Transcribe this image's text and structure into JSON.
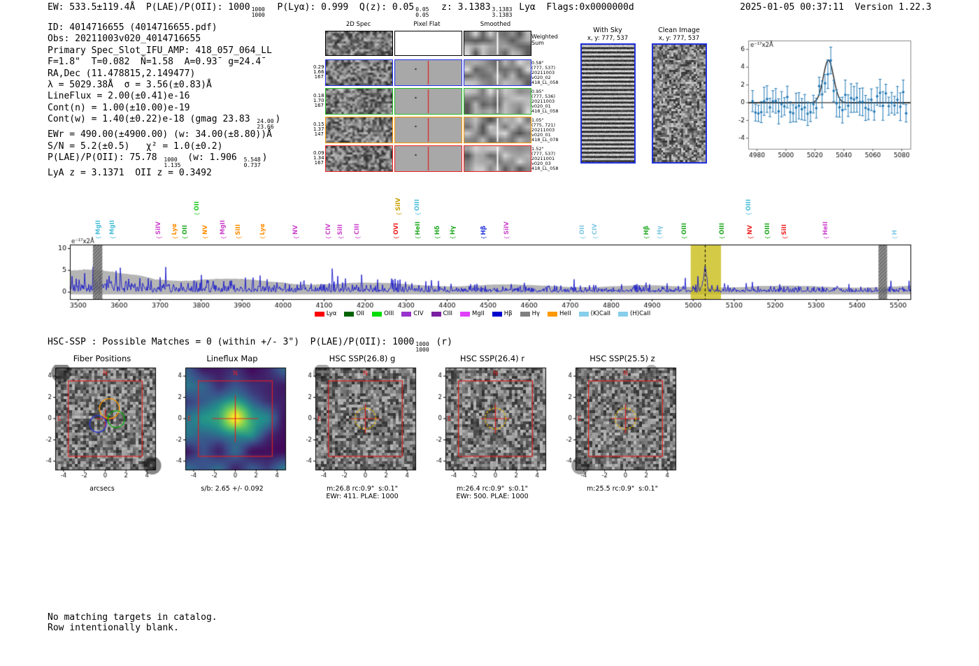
{
  "header": {
    "summary_segments": [
      {
        "t": "EW: 533.5±119.4Å  P(LAE)/P(OII): 1000"
      },
      {
        "frac": [
          "1000",
          "1000"
        ]
      },
      {
        "t": "  P(Lyα): 0.999  Q(z): 0.05"
      },
      {
        "frac": [
          "0.05",
          "0.05"
        ]
      },
      {
        "t": "  z: 3.1383"
      },
      {
        "frac": [
          "3.1383",
          "3.1383"
        ]
      },
      {
        "t": " Lyα  Flags:0x0000000d"
      }
    ],
    "timestamp_version": "2025-01-05 00:37:11  Version 1.22.3"
  },
  "info": {
    "lines": [
      [
        {
          "t": "ID: 4014716655 (4014716655.pdf)"
        }
      ],
      [
        {
          "t": "Obs: 20211003v020_4014716655"
        }
      ],
      [
        {
          "t": "Primary Spec_Slot_IFU_AMP: 418_057_064_LL"
        }
      ],
      [
        {
          "t": "F=1.8\"  T=0.082  N̄=1.58  A=0.93̄  g=24.4̄"
        }
      ],
      [
        {
          "t": "RA,Dec (11.478815,2.149477)"
        }
      ],
      [
        {
          "t": "λ = 5029.38Å  σ = 3.56(±0.83)Å"
        }
      ],
      [
        {
          "t": "LineFlux = 2.00(±0.41)e-16"
        }
      ],
      [
        {
          "t": "Cont(n) = 1.00(±10.00)e-19"
        }
      ],
      [
        {
          "t": "Cont(w) = 1.40(±0.22)e-18 (gmag 23.83 "
        },
        {
          "frac": [
            "24.00",
            "23.66"
          ]
        },
        {
          "t": ")"
        }
      ],
      [
        {
          "t": "EWr = 490.00(±4900.00) (w: 34.00(±8.80))Å"
        }
      ],
      [
        {
          "t": "S/N = 5.2(±0.5)   χ² = 1.0(±0.2)"
        }
      ],
      [
        {
          "t": "P(LAE)/P(OII): 75.78 "
        },
        {
          "frac": [
            "1000",
            "1.135"
          ]
        },
        {
          "t": " (w: 1.906 "
        },
        {
          "frac": [
            "5.548",
            "0.737"
          ]
        },
        {
          "t": ")"
        }
      ],
      [
        {
          "t": "LyA z = 3.1371  OII z = 0.3492"
        }
      ]
    ]
  },
  "spec2d": {
    "col_titles": [
      "2D Spec",
      "Pixel Flat",
      "Smoothed"
    ],
    "weighted_label": [
      "Weighted",
      "Sum"
    ],
    "rows": [
      {
        "border": "#2233ee",
        "left": [
          "0.29",
          "1.66",
          "167"
        ],
        "right": [
          "0.58\"",
          "(777, 537)",
          "20211003",
          "v020_02",
          "418_LL_058"
        ]
      },
      {
        "border": "#22bb22",
        "left": [
          "0.18",
          "1.70",
          "167"
        ],
        "right": [
          "0.95\"",
          "(777, 536)",
          "20211003",
          "v020_01",
          "418_LL_058"
        ]
      },
      {
        "border": "#ff9900",
        "left": [
          "0.15",
          "1.37",
          "147"
        ],
        "right": [
          "1.05\"",
          "(775, 721)",
          "20211003",
          "v020_01",
          "418_LL_078"
        ]
      },
      {
        "border": "#ee2222",
        "left": [
          "0.09",
          "1.34",
          "167"
        ],
        "right": [
          "1.52\"",
          "(777, 537)",
          "20211001",
          "v020_03",
          "418_LL_058"
        ]
      }
    ]
  },
  "sky_panels": [
    {
      "title": "With Sky",
      "coords": "x, y: 777, 537",
      "pattern": "stripes",
      "seed": 41
    },
    {
      "title": "Clean Image",
      "coords": "x, y: 777, 537",
      "pattern": "noise",
      "seed": 42
    }
  ],
  "hsc_line_segments": [
    {
      "t": "HSC-SSP : Possible Matches = 0 (within +/- 3\")  P(LAE)/P(OII): 1000"
    },
    {
      "frac": [
        "1000",
        "1000"
      ]
    },
    {
      "t": " (r)"
    }
  ],
  "footer": {
    "line1": "No matching targets in catalog.",
    "line2": "Row intentionally blank."
  },
  "chart_data": [
    {
      "id": "line_fit",
      "type": "scatter",
      "corner_label": "e⁻¹⁷x2Å",
      "x_range": [
        4974,
        5086
      ],
      "x_ticks": [
        4980,
        5000,
        5020,
        5040,
        5060,
        5080
      ],
      "y_range": [
        -5.2,
        7
      ],
      "y_ticks": [
        -4,
        -2,
        0,
        2,
        4,
        6
      ],
      "gaussian": {
        "center": 5029.38,
        "sigma": 3.56,
        "amplitude": 4.8
      },
      "point_spacing": 2,
      "noise_amp": 1.3,
      "error_bar": 1.3,
      "seed": 13,
      "point_color": "#1f77b4",
      "fit_color": "#222222"
    },
    {
      "id": "full_spectrum",
      "type": "line",
      "corner_label": "e⁻¹⁷x2Å",
      "x_range": [
        3480,
        5530
      ],
      "x_ticks": [
        3500,
        3600,
        3700,
        3800,
        3900,
        4000,
        4100,
        4200,
        4300,
        4400,
        4500,
        4600,
        4700,
        4800,
        4900,
        5000,
        5100,
        5200,
        5300,
        5400,
        5500
      ],
      "y_range": [
        -1.6,
        10.9
      ],
      "y_ticks": [
        0,
        5,
        10
      ],
      "line_color": "#1414cc",
      "envelope_color": "#b5b5b5",
      "highlight_band": {
        "x0": 4994,
        "x1": 5068,
        "color": "#c9bd16",
        "alpha": 0.8
      },
      "dashed_line_x": 5029.38,
      "gray_bands": [
        [
          3536,
          3559
        ],
        [
          5452,
          5473
        ]
      ],
      "peak": {
        "center": 5029.38,
        "sigma": 3.6,
        "amplitude": 5.2
      },
      "seed": 21,
      "emission_lines": [
        {
          "label": "MgII",
          "color": "#4dbfd9",
          "wl": 3551,
          "row": 1
        },
        {
          "label": "MgII",
          "color": "#4dbfd9",
          "wl": 3586,
          "row": 1
        },
        {
          "label": "SiIV",
          "color": "#cc44cc",
          "wl": 3699,
          "row": 1
        },
        {
          "label": "Lyα",
          "color": "#ff8c00",
          "wl": 3738,
          "row": 1
        },
        {
          "label": "OII",
          "color": "#22aa22",
          "wl": 3763,
          "row": 1
        },
        {
          "label": "OII",
          "color": "#22cc22",
          "wl": 3792,
          "row": 0
        },
        {
          "label": "NV",
          "color": "#ff8c00",
          "wl": 3812,
          "row": 1
        },
        {
          "label": "MgII",
          "color": "#cc44cc",
          "wl": 3856,
          "row": 1
        },
        {
          "label": "SiII",
          "color": "#ff8c00",
          "wl": 3893,
          "row": 1
        },
        {
          "label": "Lyα",
          "color": "#ff8c00",
          "wl": 3952,
          "row": 1
        },
        {
          "label": "NV",
          "color": "#cc44cc",
          "wl": 4033,
          "row": 1
        },
        {
          "label": "CIV",
          "color": "#cc44cc",
          "wl": 4112,
          "row": 1
        },
        {
          "label": "SiII",
          "color": "#cc44cc",
          "wl": 4142,
          "row": 1
        },
        {
          "label": "CIII",
          "color": "#cc44cc",
          "wl": 4183,
          "row": 1
        },
        {
          "label": "SiIV",
          "color": "#c8a000",
          "wl": 4284,
          "row": 0
        },
        {
          "label": "OVI",
          "color": "#ee2222",
          "wl": 4278,
          "row": 1
        },
        {
          "label": "OIII",
          "color": "#4dbfd9",
          "wl": 4330,
          "row": 0
        },
        {
          "label": "HeII",
          "color": "#22aa22",
          "wl": 4331,
          "row": 1
        },
        {
          "label": "Hδ",
          "color": "#22aa22",
          "wl": 4378,
          "row": 1
        },
        {
          "label": "Hγ",
          "color": "#22aa22",
          "wl": 4416,
          "row": 1
        },
        {
          "label": "Hβ",
          "color": "#2233dd",
          "wl": 4491,
          "row": 1
        },
        {
          "label": "SiIV",
          "color": "#cc44cc",
          "wl": 4547,
          "row": 1
        },
        {
          "label": "OII",
          "color": "#7ec8e3",
          "wl": 4732,
          "row": 1
        },
        {
          "label": "CIV",
          "color": "#7ec8e3",
          "wl": 4763,
          "row": 1
        },
        {
          "label": "Hβ",
          "color": "#22aa22",
          "wl": 4888,
          "row": 1
        },
        {
          "label": "Hγ",
          "color": "#7ec8e3",
          "wl": 4921,
          "row": 1
        },
        {
          "label": "OIII",
          "color": "#22aa22",
          "wl": 4980,
          "row": 1
        },
        {
          "label": "OIII",
          "color": "#22aa22",
          "wl": 5073,
          "row": 1
        },
        {
          "label": "OIII",
          "color": "#4dbfd9",
          "wl": 5137,
          "row": 0
        },
        {
          "label": "NV",
          "color": "#ee2222",
          "wl": 5142,
          "row": 1
        },
        {
          "label": "OIII",
          "color": "#22aa22",
          "wl": 5183,
          "row": 1
        },
        {
          "label": "SiII",
          "color": "#ee2222",
          "wl": 5225,
          "row": 1
        },
        {
          "label": "HeII",
          "color": "#cc44cc",
          "wl": 5326,
          "row": 1
        },
        {
          "label": "H",
          "color": "#7ec8e3",
          "wl": 5494,
          "row": 1
        }
      ],
      "legend": [
        {
          "label": "Lyα",
          "color": "#ff0000"
        },
        {
          "label": "OII",
          "color": "#006400"
        },
        {
          "label": "OIII",
          "color": "#00dd00"
        },
        {
          "label": "CIV",
          "color": "#9932cc"
        },
        {
          "label": "CIII",
          "color": "#7b1fa2"
        },
        {
          "label": "MgII",
          "color": "#e040fb"
        },
        {
          "label": "Hβ",
          "color": "#0000cd"
        },
        {
          "label": "Hγ",
          "color": "#808080"
        },
        {
          "label": "HeII",
          "color": "#ff9900"
        },
        {
          "label": "(K)CaII",
          "color": "#87ceeb"
        },
        {
          "label": "(H)CaII",
          "color": "#87ceeb"
        }
      ]
    },
    {
      "id": "cutouts",
      "type": "image-grid",
      "axis_range": [
        -4.8,
        4.8
      ],
      "axis_ticks": [
        -4,
        -2,
        0,
        2,
        4
      ],
      "panels": [
        {
          "id": "fiber_positions",
          "title": "Fiber Positions",
          "caption_lines": [
            "arcsecs"
          ],
          "image": "gray",
          "seed": 61,
          "n_label": "N",
          "e_label": "E",
          "blobs": [
            {
              "cx": 0.06,
              "cy": 0.05,
              "r": 0.1,
              "a": 0.5
            },
            {
              "cx": 0.97,
              "cy": 0.96,
              "r": 0.09,
              "a": 0.5
            }
          ],
          "overlays": {
            "box": 3.55,
            "box_color": "#dd2222",
            "crosshair": {
              "color": "#dd2222",
              "len": 0.9
            },
            "circles": [
              {
                "x": 0.4,
                "y": 0.95,
                "r": 0.95,
                "color": "#ff9900"
              },
              {
                "x": 1.05,
                "y": -0.05,
                "r": 0.8,
                "color": "#00aa00"
              },
              {
                "x": -0.7,
                "y": -0.5,
                "r": 0.8,
                "color": "#2233dd"
              }
            ]
          }
        },
        {
          "id": "lineflux_map",
          "title": "Lineflux Map",
          "caption_lines": [
            "s/b: 2.65 +/- 0.092"
          ],
          "image": "viridis",
          "seed": 62,
          "n_label": "N",
          "e_label": "E",
          "overlays": {
            "box": 3.55,
            "box_color": "#dd2222",
            "crosshair": {
              "color": "#dd2222",
              "len": 2.2
            }
          }
        },
        {
          "id": "hsc_g",
          "title": "HSC SSP(26.8) g",
          "caption_lines": [
            "m:26.8 rc:0.9\"  s:0.1\"",
            "EWr: 411. PLAE: 1000"
          ],
          "image": "gray",
          "seed": 63,
          "n_label": "N",
          "e_label": "E",
          "blobs": [
            {
              "cx": 0.07,
              "cy": 0.05,
              "r": 0.09,
              "a": 0.35
            }
          ],
          "overlays": {
            "box": 3.55,
            "box_color": "#dd2222",
            "crosshair": {
              "color": "#dd2222",
              "len": 1.4
            },
            "dashed_circle": {
              "r": 1.0,
              "color": "#e0b400"
            }
          }
        },
        {
          "id": "hsc_r",
          "title": "HSC SSP(26.4) r",
          "caption_lines": [
            "m:26.4 rc:0.9\"  s:0.1\"",
            "EWr: 500. PLAE: 1000"
          ],
          "image": "gray",
          "seed": 64,
          "n_label": "N",
          "e_label": "E",
          "overlays": {
            "box": 3.55,
            "box_color": "#dd2222",
            "crosshair": {
              "color": "#dd2222",
              "len": 1.4
            },
            "dashed_circle": {
              "r": 1.0,
              "color": "#e0b400"
            }
          }
        },
        {
          "id": "hsc_z",
          "title": "HSC SSP(25.5) z",
          "caption_lines": [
            "m:25.5 rc:0.9\"  s:0.1\""
          ],
          "image": "gray",
          "seed": 65,
          "n_label": "N",
          "e_label": "E",
          "blobs": [
            {
              "cx": 0.05,
              "cy": 0.96,
              "r": 0.09,
              "a": 0.4
            },
            {
              "cx": 0.76,
              "cy": 0.03,
              "r": 0.06,
              "a": 0.3
            }
          ],
          "overlays": {
            "box": 3.55,
            "box_color": "#dd2222",
            "crosshair": {
              "color": "#dd2222",
              "len": 1.4
            },
            "dashed_circle": {
              "r": 1.0,
              "color": "#e0b400"
            }
          }
        }
      ]
    }
  ]
}
